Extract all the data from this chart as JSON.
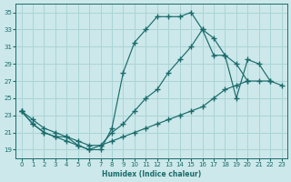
{
  "xlabel": "Humidex (Indice chaleur)",
  "background_color": "#cce8ea",
  "grid_color": "#aad4d6",
  "line_color": "#1a6b6b",
  "xlim": [
    -0.5,
    23.5
  ],
  "ylim": [
    18,
    36
  ],
  "yticks": [
    19,
    21,
    23,
    25,
    27,
    29,
    31,
    33,
    35
  ],
  "xticks": [
    0,
    1,
    2,
    3,
    4,
    5,
    6,
    7,
    8,
    9,
    10,
    11,
    12,
    13,
    14,
    15,
    16,
    17,
    18,
    19,
    20,
    21,
    22,
    23
  ],
  "series": {
    "top": {
      "x": [
        0,
        1,
        2,
        3,
        4,
        5,
        6,
        7,
        8,
        9,
        10,
        11,
        12,
        13,
        14,
        15,
        16,
        17,
        18,
        19,
        20,
        21
      ],
      "y": [
        23.5,
        22,
        21,
        20.5,
        20.5,
        19.5,
        19,
        19,
        21.5,
        28,
        31.5,
        33,
        34.5,
        34.5,
        34.5,
        35,
        33,
        32,
        30,
        29,
        27,
        null
      ]
    },
    "mid": {
      "x": [
        0,
        1,
        2,
        3,
        4,
        5,
        6,
        7,
        8,
        9,
        10,
        11,
        12,
        13,
        14,
        15,
        16,
        17,
        18,
        19,
        20,
        21,
        22,
        23
      ],
      "y": [
        23.5,
        22,
        21,
        20.5,
        20,
        19.5,
        19,
        19.5,
        21,
        22,
        23.5,
        25,
        26,
        28,
        29.5,
        31,
        33,
        30,
        30,
        25,
        29.5,
        29,
        27,
        null
      ]
    },
    "bot": {
      "x": [
        0,
        1,
        2,
        3,
        4,
        5,
        6,
        7,
        8,
        9,
        10,
        11,
        12,
        13,
        14,
        15,
        16,
        17,
        18,
        19,
        20,
        21,
        22,
        23
      ],
      "y": [
        23.5,
        22.5,
        21.5,
        21,
        20.5,
        20,
        19.5,
        19.5,
        20,
        20.5,
        21,
        21.5,
        22,
        22.5,
        23,
        23.5,
        24,
        25,
        26,
        26.5,
        27,
        27,
        27,
        26.5
      ]
    }
  }
}
